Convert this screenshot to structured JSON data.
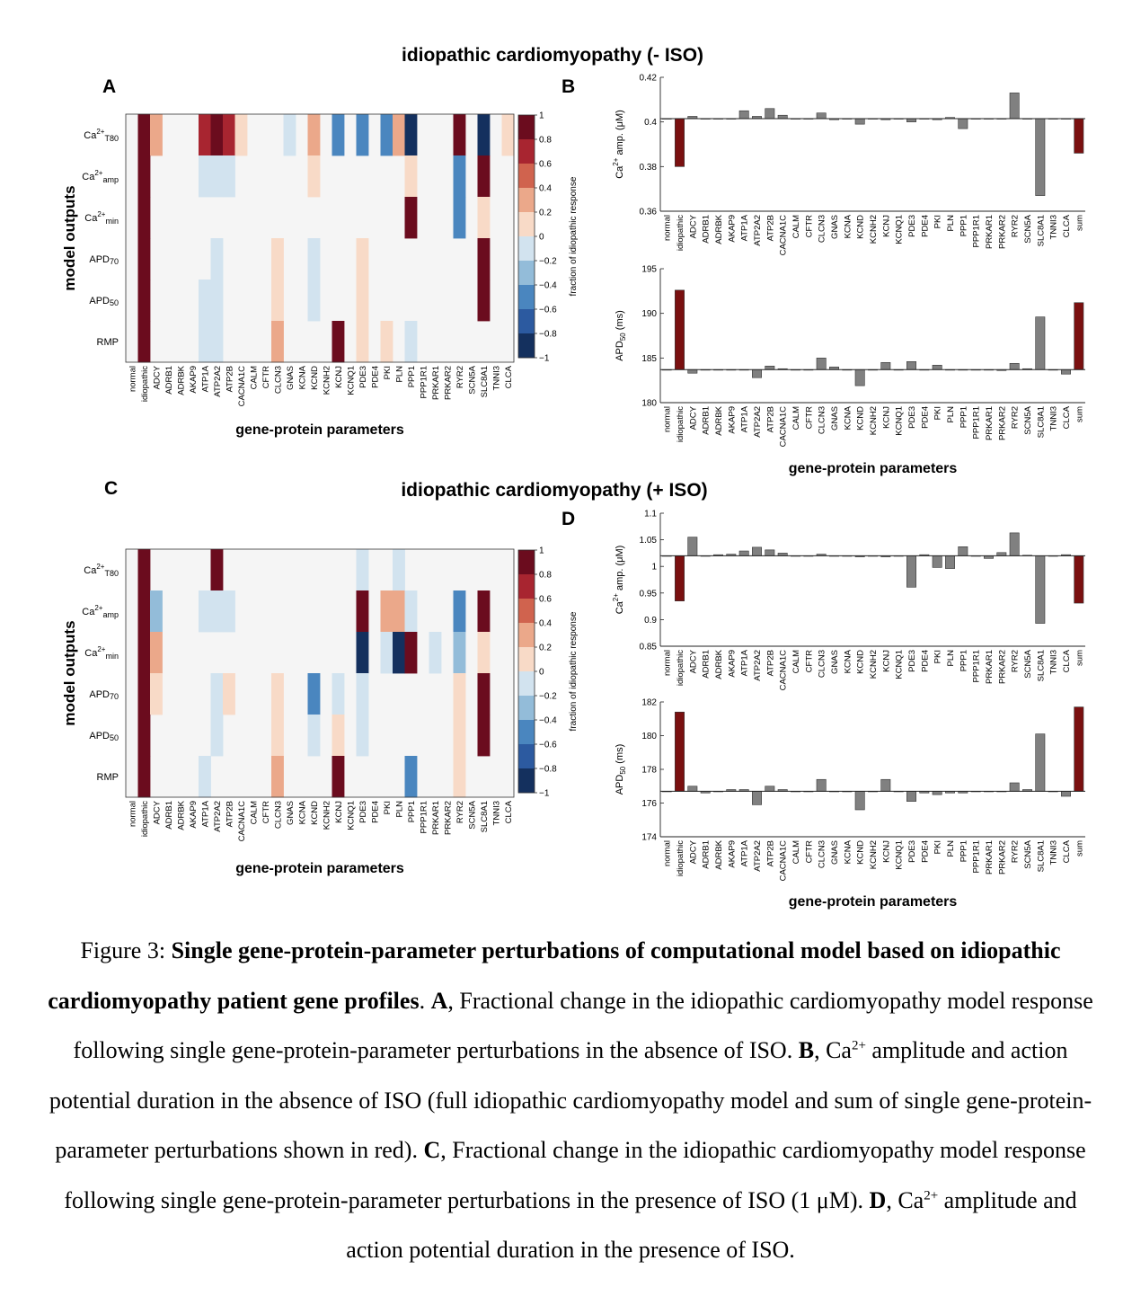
{
  "figure": {
    "title_top": "idiopathic cardiomyopathy (- ISO)",
    "title_bottom": "idiopathic cardiomyopathy (+ ISO)",
    "panel_labels": [
      "A",
      "B",
      "C",
      "D"
    ],
    "heatmap_ylabel": "model outputs",
    "heatmap_xlabel": "gene-protein parameters",
    "bar_xlabel": "gene-protein parameters",
    "colorbar_label": "fraction of idiopathic response",
    "colorbar_ticks": [
      "1",
      "0.8",
      "0.6",
      "0.4",
      "0.2",
      "0",
      "−0.2",
      "−0.4",
      "−0.6",
      "−0.8",
      "−1"
    ],
    "genes": [
      "normal",
      "idiopathic",
      "ADCY",
      "ADRB1",
      "ADRBK",
      "AKAP9",
      "ATP1A",
      "ATP2A2",
      "ATP2B",
      "CACNA1C",
      "CALM",
      "CFTR",
      "CLCN3",
      "GNAS",
      "KCNA",
      "KCND",
      "KCNH2",
      "KCNJ",
      "KCNQ1",
      "PDE3",
      "PDE4",
      "PKI",
      "PLN",
      "PPP1",
      "PPP1R1",
      "PRKAR1",
      "PRKAR2",
      "RYR2",
      "SCN5A",
      "SLC8A1",
      "TNNI3",
      "CLCA",
      "sum"
    ],
    "row_labels": [
      {
        "base": "Ca",
        "sup": "2+",
        "sub": "T80"
      },
      {
        "base": "Ca",
        "sup": "2+",
        "sub": "amp"
      },
      {
        "base": "Ca",
        "sup": "2+",
        "sub": "min"
      },
      {
        "base": "APD",
        "sup": "",
        "sub": "70"
      },
      {
        "base": "APD",
        "sup": "",
        "sub": "50"
      },
      {
        "base": "RMP",
        "sup": "",
        "sub": ""
      }
    ],
    "bar_ylabels": {
      "ca": {
        "base": "Ca",
        "sup": "2+",
        "rest": " amp. (μM)"
      },
      "apd": {
        "base": "APD",
        "sub": "50",
        "rest": " (ms)"
      }
    },
    "colors": {
      "red": "#7a1010",
      "gray": "#808080",
      "grid_bg": "#f5f5f5"
    }
  },
  "chart_data": [
    {
      "type": "heatmap",
      "panel": "A",
      "colorbar_range": [
        -1,
        1
      ],
      "rows": [
        "Ca2+ T80",
        "Ca2+ amp",
        "Ca2+ min",
        "APD70",
        "APD50",
        "RMP"
      ],
      "columns": [
        "normal",
        "idiopathic",
        "ADCY",
        "ADRB1",
        "ADRBK",
        "AKAP9",
        "ATP1A",
        "ATP2A2",
        "ATP2B",
        "CACNA1C",
        "CALM",
        "CFTR",
        "CLCN3",
        "GNAS",
        "KCNA",
        "KCND",
        "KCNH2",
        "KCNJ",
        "KCNQ1",
        "PDE3",
        "PDE4",
        "PKI",
        "PLN",
        "PPP1",
        "PPP1R1",
        "PRKAR1",
        "PRKAR2",
        "RYR2",
        "SCN5A",
        "SLC8A1",
        "TNNI3",
        "CLCA"
      ],
      "values": [
        [
          0,
          1,
          0.4,
          0,
          0,
          0,
          0.6,
          1,
          0.6,
          0.2,
          0,
          0,
          0,
          -0.1,
          0,
          0.4,
          0,
          -0.4,
          0,
          -0.6,
          0,
          -0.4,
          0.4,
          -1,
          0,
          0,
          0,
          1,
          0,
          -1,
          0,
          0.2
        ],
        [
          0,
          1,
          0,
          0,
          0,
          0,
          -0.1,
          -0.1,
          -0.1,
          0,
          0,
          0,
          0,
          0,
          0,
          0.1,
          0,
          0,
          0,
          0,
          0,
          0,
          0,
          0.1,
          0,
          0,
          0,
          -0.6,
          0,
          1,
          0,
          0
        ],
        [
          0,
          1,
          0,
          0,
          0,
          0,
          0,
          0,
          0,
          0,
          0,
          0,
          0,
          0,
          0,
          0,
          0,
          0,
          0,
          0,
          0,
          0,
          0,
          1,
          0,
          0,
          0,
          -0.6,
          0,
          0.2,
          0,
          0
        ],
        [
          0,
          1,
          0,
          0,
          0,
          0,
          0,
          -0.1,
          0,
          0,
          0,
          0,
          0.1,
          0,
          0,
          -0.1,
          0,
          0,
          0,
          0.1,
          0,
          0,
          0,
          0,
          0,
          0,
          0,
          0,
          0,
          0.8,
          0,
          0
        ],
        [
          0,
          1,
          0,
          0,
          0,
          0,
          -0.1,
          -0.1,
          0,
          0,
          0,
          0,
          0.1,
          0,
          0,
          -0.1,
          0,
          0,
          0,
          0.1,
          0,
          0,
          0,
          0,
          0,
          0,
          0,
          0,
          0,
          0.8,
          0,
          0
        ],
        [
          0,
          1,
          0,
          0,
          0,
          0,
          -0.1,
          -0.1,
          0,
          0,
          0,
          0,
          0.3,
          0,
          0,
          0,
          0,
          1,
          0,
          0.1,
          0,
          0.1,
          0,
          -0.1,
          0,
          0,
          0,
          0,
          0,
          0,
          0,
          0
        ]
      ]
    },
    {
      "type": "bar",
      "panel": "B",
      "series": [
        {
          "name": "Ca2+ amp. (μM)",
          "baseline": 0.4015,
          "ylim": [
            0.36,
            0.42
          ],
          "yticks": [
            0.36,
            0.38,
            0.4,
            0.42
          ],
          "values": [
            0.4015,
            0.38,
            0.4025,
            0.4015,
            0.4015,
            0.4015,
            0.405,
            0.4025,
            0.406,
            0.403,
            0.4015,
            0.4015,
            0.404,
            0.401,
            0.4015,
            0.399,
            0.4015,
            0.401,
            0.4015,
            0.4,
            0.4015,
            0.401,
            0.402,
            0.397,
            0.4015,
            0.4015,
            0.4015,
            0.413,
            0.4015,
            0.367,
            0.4015,
            0.4015,
            0.386
          ]
        },
        {
          "name": "APD50 (ms)",
          "baseline": 183.7,
          "ylim": [
            180,
            195
          ],
          "yticks": [
            180,
            185,
            190,
            195
          ],
          "values": [
            183.7,
            192.6,
            183.3,
            183.7,
            183.7,
            183.7,
            183.7,
            182.8,
            184.1,
            183.8,
            183.7,
            183.7,
            185.0,
            184.0,
            183.7,
            181.9,
            183.7,
            184.5,
            183.7,
            184.6,
            183.7,
            184.2,
            183.7,
            183.7,
            183.7,
            183.7,
            183.6,
            184.4,
            183.8,
            189.6,
            183.7,
            183.2,
            191.2
          ]
        }
      ]
    },
    {
      "type": "heatmap",
      "panel": "C",
      "colorbar_range": [
        -1,
        1
      ],
      "rows": [
        "Ca2+ T80",
        "Ca2+ amp",
        "Ca2+ min",
        "APD70",
        "APD50",
        "RMP"
      ],
      "columns": [
        "normal",
        "idiopathic",
        "ADCY",
        "ADRB1",
        "ADRBK",
        "AKAP9",
        "ATP1A",
        "ATP2A2",
        "ATP2B",
        "CACNA1C",
        "CALM",
        "CFTR",
        "CLCN3",
        "GNAS",
        "KCNA",
        "KCND",
        "KCNH2",
        "KCNJ",
        "KCNQ1",
        "PDE3",
        "PDE4",
        "PKI",
        "PLN",
        "PPP1",
        "PPP1R1",
        "PRKAR1",
        "PRKAR2",
        "RYR2",
        "SCN5A",
        "SLC8A1",
        "TNNI3",
        "CLCA"
      ],
      "values": [
        [
          0,
          1,
          0,
          0,
          0,
          0,
          0,
          1,
          0,
          0,
          0,
          0,
          0,
          0,
          0,
          0,
          0,
          0,
          0,
          -0.1,
          0,
          0,
          -0.1,
          0,
          0,
          0,
          0,
          0,
          0,
          0,
          0,
          0
        ],
        [
          0,
          1,
          -0.3,
          0,
          0,
          0,
          -0.1,
          -0.1,
          -0.1,
          0,
          0,
          0,
          0,
          0,
          0,
          0,
          0,
          0,
          0,
          0.8,
          0,
          0.4,
          0.4,
          -0.1,
          0,
          0,
          0,
          -0.6,
          0,
          1,
          0,
          0
        ],
        [
          0,
          1,
          0.4,
          0,
          0,
          0,
          0,
          0,
          0,
          0,
          0,
          0,
          0,
          0,
          0,
          0,
          0,
          0,
          0,
          -0.8,
          0,
          -0.1,
          -0.8,
          1,
          0,
          -0.1,
          0,
          -0.3,
          0,
          0.1,
          0,
          0
        ],
        [
          0,
          1,
          0.1,
          0,
          0,
          0,
          0,
          -0.1,
          0.1,
          0,
          0,
          0,
          0.1,
          0,
          0,
          -0.4,
          0,
          -0.1,
          0,
          -0.1,
          0,
          0,
          0,
          0,
          0,
          0,
          0,
          0.1,
          0,
          1,
          0,
          0
        ],
        [
          0,
          1,
          0,
          0,
          0,
          0,
          0,
          -0.1,
          0,
          0,
          0,
          0,
          0.1,
          0,
          0,
          -0.1,
          0,
          0.1,
          0,
          -0.1,
          0,
          0,
          0,
          0,
          0,
          0,
          0,
          0.1,
          0,
          0.8,
          0,
          0
        ],
        [
          0,
          1,
          0,
          0,
          0,
          0,
          -0.1,
          0,
          0,
          0,
          0,
          0,
          0.3,
          0,
          0,
          0,
          0,
          1,
          0,
          0,
          0,
          0,
          0,
          -0.6,
          0,
          0,
          0,
          0.1,
          0,
          0,
          0,
          0
        ]
      ]
    },
    {
      "type": "bar",
      "panel": "D",
      "series": [
        {
          "name": "Ca2+ amp. (μM)",
          "baseline": 1.02,
          "ylim": [
            0.85,
            1.1
          ],
          "yticks": [
            0.85,
            0.9,
            0.95,
            1,
            1.05,
            1.1
          ],
          "values": [
            1.02,
            0.935,
            1.055,
            1.02,
            1.022,
            1.023,
            1.029,
            1.036,
            1.031,
            1.025,
            1.02,
            1.02,
            1.023,
            1.02,
            1.02,
            1.018,
            1.02,
            1.018,
            1.02,
            0.961,
            1.022,
            0.998,
            0.996,
            1.037,
            1.019,
            1.015,
            1.026,
            1.063,
            1.021,
            0.893,
            1.02,
            1.022,
            0.931
          ]
        },
        {
          "name": "APD50 (ms)",
          "baseline": 176.7,
          "ylim": [
            174,
            182
          ],
          "yticks": [
            174,
            176,
            178,
            180,
            182
          ],
          "values": [
            176.7,
            181.4,
            177.0,
            176.6,
            176.7,
            176.8,
            176.8,
            175.9,
            177.0,
            176.8,
            176.7,
            176.7,
            177.4,
            176.7,
            176.7,
            175.6,
            176.7,
            177.4,
            176.7,
            176.1,
            176.6,
            176.5,
            176.6,
            176.6,
            176.7,
            176.7,
            176.7,
            177.2,
            176.8,
            180.1,
            176.7,
            176.4,
            181.7
          ]
        }
      ]
    }
  ],
  "caption": {
    "fig_label": "Figure  3: ",
    "bold_title": "Single gene-protein-parameter perturbations of computational model based on idiopathic cardiomyopathy patient gene profiles",
    "period": ". ",
    "A_label": "A",
    "A_text": ", Fractional change in the idiopathic cardiomyopathy model response following single gene-protein-parameter perturbations in the absence of ISO. ",
    "B_label": "B",
    "B_text1": ", Ca",
    "B_sup": "2+",
    "B_text2": " amplitude and action potential duration in the absence of ISO (full idiopathic cardiomyopathy model and sum of single gene-protein-parameter perturbations shown in red). ",
    "C_label": "C",
    "C_text": ", Fractional change in the idiopathic cardiomyopathy model response following single gene-protein-parameter perturbations in the presence of ISO (1 μM). ",
    "D_label": "D",
    "D_text1": ", Ca",
    "D_sup": "2+",
    "D_text2": " amplitude and action potential duration in the presence of ISO."
  }
}
